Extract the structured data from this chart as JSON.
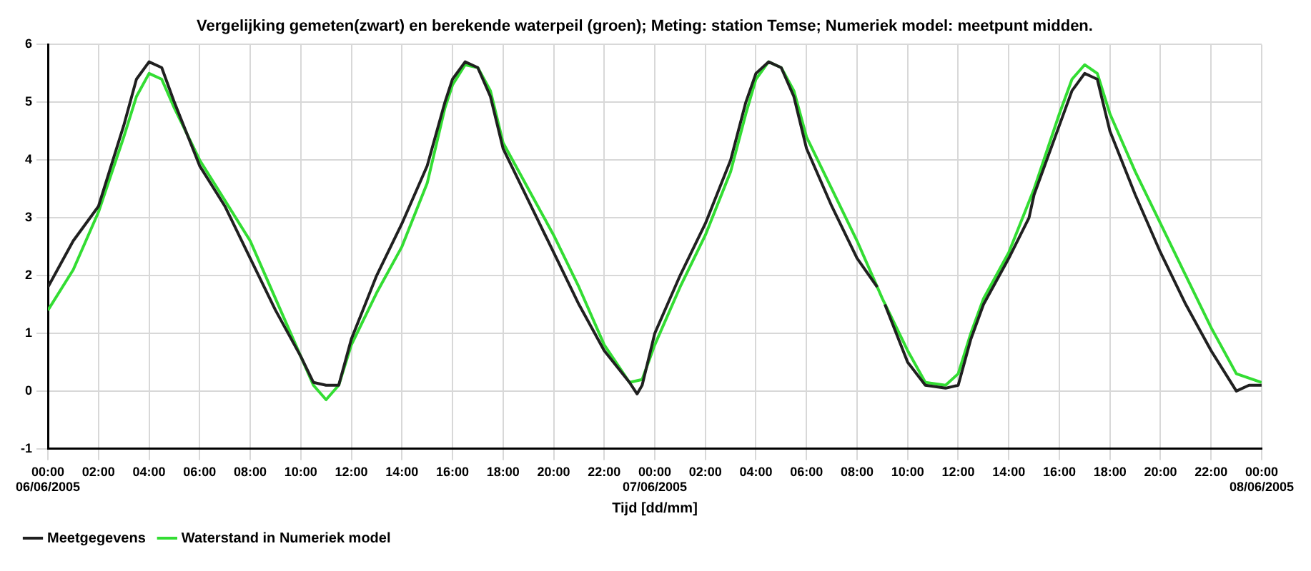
{
  "chart_data": {
    "type": "line",
    "title": "Vergelijking gemeten(zwart) en berekende waterpeil (groen); Meting: station Temse; Numeriek model: meetpunt midden.",
    "xlabel": "Tijd [dd/mm]",
    "xlim": [
      "2005-06-06T00:00",
      "2005-06-08T00:00"
    ],
    "ylim": [
      -1,
      6
    ],
    "xticks": [
      {
        "value": "2005-06-06T00:00",
        "label": "00:00\n06/06/2005"
      },
      {
        "value": "2005-06-06T02:00",
        "label": "02:00"
      },
      {
        "value": "2005-06-06T04:00",
        "label": "04:00"
      },
      {
        "value": "2005-06-06T06:00",
        "label": "06:00"
      },
      {
        "value": "2005-06-06T08:00",
        "label": "08:00"
      },
      {
        "value": "2005-06-06T10:00",
        "label": "10:00"
      },
      {
        "value": "2005-06-06T12:00",
        "label": "12:00"
      },
      {
        "value": "2005-06-06T14:00",
        "label": "14:00"
      },
      {
        "value": "2005-06-06T16:00",
        "label": "16:00"
      },
      {
        "value": "2005-06-06T18:00",
        "label": "18:00"
      },
      {
        "value": "2005-06-06T20:00",
        "label": "20:00"
      },
      {
        "value": "2005-06-06T22:00",
        "label": "22:00"
      },
      {
        "value": "2005-06-07T00:00",
        "label": "00:00\n07/06/2005"
      },
      {
        "value": "2005-06-07T02:00",
        "label": "02:00"
      },
      {
        "value": "2005-06-07T04:00",
        "label": "04:00"
      },
      {
        "value": "2005-06-07T06:00",
        "label": "06:00"
      },
      {
        "value": "2005-06-07T08:00",
        "label": "08:00"
      },
      {
        "value": "2005-06-07T10:00",
        "label": "10:00"
      },
      {
        "value": "2005-06-07T12:00",
        "label": "12:00"
      },
      {
        "value": "2005-06-07T14:00",
        "label": "14:00"
      },
      {
        "value": "2005-06-07T16:00",
        "label": "16:00"
      },
      {
        "value": "2005-06-07T18:00",
        "label": "18:00"
      },
      {
        "value": "2005-06-07T20:00",
        "label": "20:00"
      },
      {
        "value": "2005-06-07T22:00",
        "label": "22:00"
      },
      {
        "value": "2005-06-08T00:00",
        "label": "00:00\n08/06/2005"
      }
    ],
    "yticks": [
      -1,
      0,
      1,
      2,
      3,
      4,
      5,
      6
    ],
    "grid": true,
    "legend": "bottom left",
    "marker": "none",
    "line_style": "solid",
    "series": [
      {
        "name": "Meetgegevens",
        "color": "#202020",
        "x": [
          "2005-06-06T00:00",
          "2005-06-06T01:00",
          "2005-06-06T02:00",
          "2005-06-06T03:00",
          "2005-06-06T03:30",
          "2005-06-06T04:00",
          "2005-06-06T04:30",
          "2005-06-06T05:00",
          "2005-06-06T06:00",
          "2005-06-06T07:00",
          "2005-06-06T08:00",
          "2005-06-06T09:00",
          "2005-06-06T10:00",
          "2005-06-06T10:30",
          "2005-06-06T11:00",
          "2005-06-06T11:30",
          "2005-06-06T12:00",
          "2005-06-06T13:00",
          "2005-06-06T14:00",
          "2005-06-06T15:00",
          "2005-06-06T15:42",
          "2005-06-06T16:00",
          "2005-06-06T16:30",
          "2005-06-06T17:00",
          "2005-06-06T17:30",
          "2005-06-06T18:00",
          "2005-06-06T19:00",
          "2005-06-06T20:00",
          "2005-06-06T21:00",
          "2005-06-06T22:00",
          "2005-06-06T23:00",
          "2005-06-06T23:18",
          "2005-06-06T23:30",
          "2005-06-07T00:00",
          "2005-06-07T01:00",
          "2005-06-07T02:00",
          "2005-06-07T03:00",
          "2005-06-07T03:36",
          "2005-06-07T04:00",
          "2005-06-07T04:30",
          "2005-06-07T05:00",
          "2005-06-07T05:30",
          "2005-06-07T06:00",
          "2005-06-07T07:00",
          "2005-06-07T08:00",
          "2005-06-07T08:48",
          "2005-06-07T08:54",
          "2005-06-07T09:06",
          "2005-06-07T10:00",
          "2005-06-07T10:42",
          "2005-06-07T11:30",
          "2005-06-07T12:00",
          "2005-06-07T12:30",
          "2005-06-07T13:00",
          "2005-06-07T14:00",
          "2005-06-07T14:48",
          "2005-06-07T15:00",
          "2005-06-07T16:00",
          "2005-06-07T16:30",
          "2005-06-07T17:00",
          "2005-06-07T17:30",
          "2005-06-07T18:00",
          "2005-06-07T19:00",
          "2005-06-07T20:00",
          "2005-06-07T21:00",
          "2005-06-07T22:00",
          "2005-06-07T23:00",
          "2005-06-07T23:30",
          "2005-06-08T00:00"
        ],
        "values": [
          1.8,
          2.6,
          3.2,
          4.6,
          5.4,
          5.7,
          5.6,
          5.0,
          3.9,
          3.2,
          2.3,
          1.4,
          0.6,
          0.15,
          0.1,
          0.1,
          0.9,
          2.0,
          2.9,
          3.9,
          5.0,
          5.4,
          5.7,
          5.6,
          5.1,
          4.2,
          3.3,
          2.4,
          1.5,
          0.7,
          0.15,
          -0.05,
          0.1,
          1.0,
          2.0,
          2.9,
          4.0,
          5.0,
          5.5,
          5.7,
          5.6,
          5.1,
          4.2,
          3.2,
          2.3,
          1.8,
          null,
          1.5,
          0.5,
          0.1,
          0.05,
          0.1,
          0.9,
          1.5,
          2.3,
          3.0,
          3.4,
          4.6,
          5.2,
          5.5,
          5.4,
          4.5,
          3.4,
          2.4,
          1.5,
          0.7,
          0.0,
          0.1,
          0.1
        ]
      },
      {
        "name": "Waterstand in Numeriek model",
        "color": "#33dd33",
        "x": [
          "2005-06-06T00:00",
          "2005-06-06T01:00",
          "2005-06-06T02:00",
          "2005-06-06T03:00",
          "2005-06-06T03:30",
          "2005-06-06T04:00",
          "2005-06-06T04:30",
          "2005-06-06T05:00",
          "2005-06-06T06:00",
          "2005-06-06T07:00",
          "2005-06-06T08:00",
          "2005-06-06T09:00",
          "2005-06-06T10:00",
          "2005-06-06T10:30",
          "2005-06-06T11:00",
          "2005-06-06T11:30",
          "2005-06-06T12:00",
          "2005-06-06T13:00",
          "2005-06-06T14:00",
          "2005-06-06T15:00",
          "2005-06-06T15:42",
          "2005-06-06T16:00",
          "2005-06-06T16:30",
          "2005-06-06T17:00",
          "2005-06-06T17:30",
          "2005-06-06T18:00",
          "2005-06-06T19:00",
          "2005-06-06T20:00",
          "2005-06-06T21:00",
          "2005-06-06T22:00",
          "2005-06-06T23:00",
          "2005-06-06T23:30",
          "2005-06-07T00:00",
          "2005-06-07T01:00",
          "2005-06-07T02:00",
          "2005-06-07T03:00",
          "2005-06-07T03:36",
          "2005-06-07T04:00",
          "2005-06-07T04:30",
          "2005-06-07T05:00",
          "2005-06-07T05:30",
          "2005-06-07T06:00",
          "2005-06-07T07:00",
          "2005-06-07T08:00",
          "2005-06-07T09:00",
          "2005-06-07T10:00",
          "2005-06-07T10:42",
          "2005-06-07T11:30",
          "2005-06-07T12:00",
          "2005-06-07T12:30",
          "2005-06-07T13:00",
          "2005-06-07T14:00",
          "2005-06-07T15:00",
          "2005-06-07T16:00",
          "2005-06-07T16:30",
          "2005-06-07T17:00",
          "2005-06-07T17:30",
          "2005-06-07T18:00",
          "2005-06-07T19:00",
          "2005-06-07T20:00",
          "2005-06-07T21:00",
          "2005-06-07T22:00",
          "2005-06-07T23:00",
          "2005-06-08T00:00"
        ],
        "values": [
          1.4,
          2.1,
          3.1,
          4.4,
          5.1,
          5.5,
          5.4,
          4.9,
          4.0,
          3.3,
          2.6,
          1.6,
          0.6,
          0.1,
          -0.15,
          0.1,
          0.8,
          1.7,
          2.5,
          3.6,
          4.9,
          5.3,
          5.65,
          5.6,
          5.2,
          4.3,
          3.5,
          2.7,
          1.8,
          0.8,
          0.15,
          0.2,
          0.8,
          1.8,
          2.7,
          3.8,
          4.8,
          5.4,
          5.7,
          5.6,
          5.2,
          4.4,
          3.5,
          2.6,
          1.6,
          0.7,
          0.15,
          0.1,
          0.3,
          1.0,
          1.6,
          2.4,
          3.5,
          4.8,
          5.4,
          5.65,
          5.5,
          4.8,
          3.8,
          2.9,
          2.0,
          1.1,
          0.3,
          0.15
        ]
      }
    ]
  }
}
